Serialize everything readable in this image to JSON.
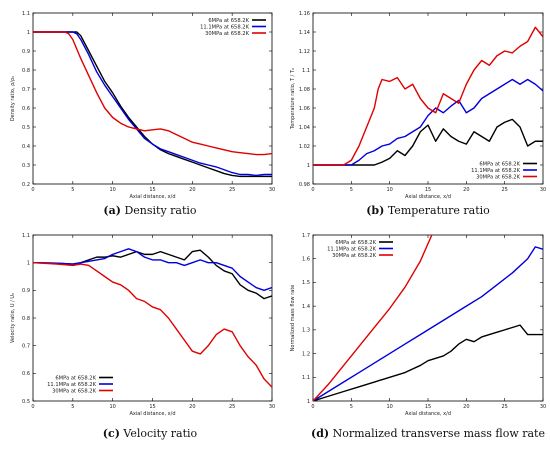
{
  "colors": {
    "black": "#000000",
    "blue": "#0000dd",
    "red": "#e00000"
  },
  "chart_data": [
    {
      "type": "line",
      "caption_letter": "(a)",
      "caption_text": "Density ratio",
      "xlabel": "Axial distance, x/d",
      "ylabel": "Density ratio, ρ/ρ₀",
      "xlim": [
        0,
        30
      ],
      "ylim": [
        0.2,
        1.1
      ],
      "xticks": [
        "0",
        "5",
        "10",
        "15",
        "20",
        "25",
        "30"
      ],
      "yticks": [
        "0.2",
        "0.3",
        "0.4",
        "0.5",
        "0.6",
        "0.7",
        "0.8",
        "0.9",
        "1",
        "1.1"
      ],
      "legend_position": "top-right",
      "series": [
        {
          "name": "6MPa at 658.2K",
          "color": "#000000",
          "x": [
            0,
            5.5,
            6,
            7,
            8,
            9,
            10,
            11,
            12,
            13,
            14,
            15,
            16,
            17,
            18,
            19,
            20,
            21,
            22,
            23,
            24,
            25,
            26,
            27,
            28,
            29,
            30
          ],
          "y": [
            1,
            1,
            0.98,
            0.9,
            0.82,
            0.74,
            0.68,
            0.61,
            0.55,
            0.5,
            0.45,
            0.41,
            0.38,
            0.36,
            0.345,
            0.33,
            0.315,
            0.3,
            0.285,
            0.27,
            0.255,
            0.245,
            0.24,
            0.24,
            0.24,
            0.24,
            0.24
          ]
        },
        {
          "name": "11.1MPa at 658.2K",
          "color": "#0000dd",
          "x": [
            0,
            5,
            5.5,
            6,
            7,
            8,
            9,
            10,
            11,
            12,
            13,
            14,
            15,
            16,
            17,
            18,
            19,
            20,
            21,
            22,
            23,
            24,
            25,
            26,
            27,
            28,
            29,
            30
          ],
          "y": [
            1,
            1,
            0.99,
            0.96,
            0.88,
            0.79,
            0.72,
            0.66,
            0.6,
            0.54,
            0.49,
            0.44,
            0.41,
            0.385,
            0.37,
            0.355,
            0.34,
            0.325,
            0.31,
            0.3,
            0.29,
            0.275,
            0.26,
            0.25,
            0.25,
            0.245,
            0.25,
            0.25
          ]
        },
        {
          "name": "30MPa at 658.2K",
          "color": "#e00000",
          "x": [
            0,
            4,
            4.5,
            5,
            5.5,
            6,
            7,
            8,
            9,
            10,
            11,
            12,
            13,
            14,
            15,
            16,
            17,
            18,
            19,
            20,
            21,
            22,
            23,
            24,
            25,
            26,
            27,
            28,
            29,
            30
          ],
          "y": [
            1,
            1,
            0.99,
            0.96,
            0.91,
            0.86,
            0.77,
            0.68,
            0.6,
            0.55,
            0.52,
            0.5,
            0.49,
            0.48,
            0.485,
            0.49,
            0.48,
            0.46,
            0.44,
            0.42,
            0.41,
            0.4,
            0.39,
            0.38,
            0.37,
            0.365,
            0.36,
            0.355,
            0.355,
            0.36
          ]
        }
      ]
    },
    {
      "type": "line",
      "caption_letter": "(b)",
      "caption_text": "Temperature ratio",
      "xlabel": "Axial distance, x/d",
      "ylabel": "Temperature ratio, T / T₀",
      "xlim": [
        0,
        30
      ],
      "ylim": [
        0.98,
        1.16
      ],
      "xticks": [
        "0",
        "5",
        "10",
        "15",
        "20",
        "25",
        "30"
      ],
      "yticks": [
        "0.98",
        "1",
        "1.02",
        "1.04",
        "1.06",
        "1.08",
        "1.1",
        "1.12",
        "1.14",
        "1.16"
      ],
      "legend_position": "bottom-right",
      "series": [
        {
          "name": "6MPa at 658.2K",
          "color": "#000000",
          "x": [
            0,
            7,
            8,
            9,
            10,
            11,
            12,
            13,
            14,
            15,
            16,
            17,
            18,
            19,
            20,
            21,
            22,
            23,
            24,
            25,
            26,
            27,
            28,
            29,
            30
          ],
          "y": [
            1,
            1,
            1,
            1.003,
            1.007,
            1.015,
            1.01,
            1.02,
            1.035,
            1.042,
            1.025,
            1.038,
            1.03,
            1.025,
            1.022,
            1.035,
            1.03,
            1.025,
            1.04,
            1.045,
            1.048,
            1.04,
            1.02,
            1.025,
            1.025
          ]
        },
        {
          "name": "11.1MPa at 658.2K",
          "color": "#0000dd",
          "x": [
            0,
            5,
            6,
            7,
            8,
            9,
            10,
            11,
            12,
            13,
            14,
            15,
            16,
            17,
            18,
            19,
            20,
            21,
            22,
            23,
            24,
            25,
            26,
            27,
            28,
            29,
            30
          ],
          "y": [
            1,
            1,
            1.005,
            1.012,
            1.015,
            1.02,
            1.022,
            1.028,
            1.03,
            1.035,
            1.04,
            1.052,
            1.06,
            1.055,
            1.062,
            1.068,
            1.055,
            1.06,
            1.07,
            1.075,
            1.08,
            1.085,
            1.09,
            1.085,
            1.09,
            1.085,
            1.078
          ]
        },
        {
          "name": "30MPa at 658.2K",
          "color": "#e00000",
          "x": [
            0,
            4,
            5,
            6,
            7,
            8,
            8.5,
            9,
            10,
            11,
            12,
            13,
            14,
            15,
            16,
            17,
            18,
            19,
            20,
            21,
            22,
            23,
            24,
            25,
            26,
            27,
            28,
            29,
            30
          ],
          "y": [
            1,
            1,
            1.005,
            1.02,
            1.04,
            1.06,
            1.08,
            1.09,
            1.088,
            1.092,
            1.08,
            1.085,
            1.07,
            1.06,
            1.055,
            1.075,
            1.07,
            1.065,
            1.085,
            1.1,
            1.11,
            1.105,
            1.115,
            1.12,
            1.118,
            1.125,
            1.13,
            1.145,
            1.135
          ]
        }
      ]
    },
    {
      "type": "line",
      "caption_letter": "(c)",
      "caption_text": "Velocity ratio",
      "xlabel": "Axial distance, x/d",
      "ylabel": "Velocity ratio, U / U₀",
      "xlim": [
        0,
        30
      ],
      "ylim": [
        0.5,
        1.1
      ],
      "xticks": [
        "0",
        "5",
        "10",
        "15",
        "20",
        "25",
        "30"
      ],
      "yticks": [
        "0.5",
        "0.6",
        "0.7",
        "0.8",
        "0.9",
        "1",
        "1.1"
      ],
      "legend_position": "bottom-left",
      "series": [
        {
          "name": "6MPa at 658.2K",
          "color": "#000000",
          "x": [
            0,
            3,
            5,
            6,
            7,
            8,
            9,
            10,
            11,
            12,
            13,
            14,
            15,
            16,
            17,
            18,
            19,
            20,
            21,
            22,
            23,
            24,
            25,
            26,
            27,
            28,
            29,
            30
          ],
          "y": [
            1,
            0.998,
            0.995,
            1,
            1.01,
            1.02,
            1.02,
            1.025,
            1.02,
            1.03,
            1.04,
            1.03,
            1.03,
            1.04,
            1.03,
            1.02,
            1.01,
            1.04,
            1.045,
            1.02,
            0.99,
            0.97,
            0.96,
            0.92,
            0.9,
            0.89,
            0.87,
            0.88
          ]
        },
        {
          "name": "11.1MPa at 658.2K",
          "color": "#0000dd",
          "x": [
            0,
            3,
            5,
            6,
            7,
            8,
            9,
            10,
            11,
            12,
            13,
            14,
            15,
            16,
            17,
            18,
            19,
            20,
            21,
            22,
            23,
            24,
            25,
            26,
            27,
            28,
            29,
            30
          ],
          "y": [
            1,
            0.998,
            0.995,
            1,
            1.005,
            1.01,
            1.015,
            1.03,
            1.04,
            1.05,
            1.04,
            1.02,
            1.01,
            1.01,
            1.0,
            1.0,
            0.99,
            1.0,
            1.01,
            1.0,
            1.0,
            0.99,
            0.98,
            0.95,
            0.93,
            0.91,
            0.9,
            0.91
          ]
        },
        {
          "name": "30MPa at 658.2K",
          "color": "#e00000",
          "x": [
            0,
            3,
            5,
            6,
            7,
            8,
            9,
            10,
            11,
            12,
            13,
            14,
            15,
            16,
            17,
            18,
            19,
            20,
            21,
            22,
            23,
            24,
            25,
            26,
            27,
            28,
            29,
            30
          ],
          "y": [
            1,
            0.995,
            0.99,
            0.995,
            0.99,
            0.97,
            0.95,
            0.93,
            0.92,
            0.9,
            0.87,
            0.86,
            0.84,
            0.83,
            0.8,
            0.76,
            0.72,
            0.68,
            0.67,
            0.7,
            0.74,
            0.76,
            0.75,
            0.7,
            0.66,
            0.63,
            0.58,
            0.55
          ]
        }
      ]
    },
    {
      "type": "line",
      "caption_letter": "(d)",
      "caption_text": "Normalized transverse mass flow rate",
      "xlabel": "Axial distance, x/d",
      "ylabel": "Normalized mass flow rate",
      "xlim": [
        0,
        30
      ],
      "ylim": [
        1,
        1.7
      ],
      "xticks": [
        "0",
        "5",
        "10",
        "15",
        "20",
        "25",
        "30"
      ],
      "yticks": [
        "1",
        "1.1",
        "1.2",
        "1.3",
        "1.4",
        "1.5",
        "1.6",
        "1.7"
      ],
      "legend_position": "top-left",
      "series": [
        {
          "name": "6MPa at 658.2K",
          "color": "#000000",
          "x": [
            0,
            2,
            4,
            6,
            8,
            10,
            12,
            14,
            15,
            16,
            17,
            18,
            19,
            20,
            21,
            22,
            23,
            24,
            25,
            26,
            27,
            28,
            29,
            30
          ],
          "y": [
            1,
            1.02,
            1.04,
            1.06,
            1.08,
            1.1,
            1.12,
            1.15,
            1.17,
            1.18,
            1.19,
            1.21,
            1.24,
            1.26,
            1.25,
            1.27,
            1.28,
            1.29,
            1.3,
            1.31,
            1.32,
            1.28,
            1.28,
            1.28
          ]
        },
        {
          "name": "11.1MPa at 658.2K",
          "color": "#0000dd",
          "x": [
            0,
            2,
            4,
            6,
            8,
            10,
            12,
            14,
            16,
            18,
            20,
            22,
            24,
            26,
            28,
            29,
            30
          ],
          "y": [
            1,
            1.04,
            1.08,
            1.12,
            1.16,
            1.2,
            1.24,
            1.28,
            1.32,
            1.36,
            1.4,
            1.44,
            1.49,
            1.54,
            1.6,
            1.65,
            1.64
          ]
        },
        {
          "name": "30MPa at 658.2K",
          "color": "#e00000",
          "x": [
            0,
            2,
            4,
            6,
            8,
            10,
            12,
            14,
            15.5
          ],
          "y": [
            1,
            1.07,
            1.15,
            1.23,
            1.31,
            1.39,
            1.48,
            1.59,
            1.7
          ]
        }
      ]
    }
  ]
}
